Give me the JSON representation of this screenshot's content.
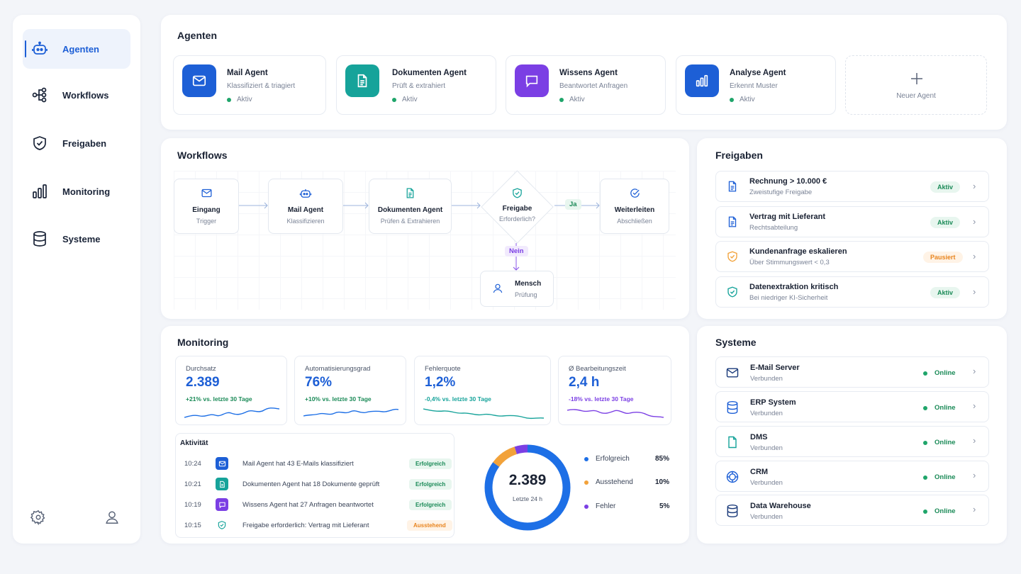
{
  "colors": {
    "accent": "#1d5fd6",
    "success": "#1fa56a",
    "warning": "#f2a23a",
    "error": "#7b3fe4"
  },
  "sidebar": {
    "items": [
      {
        "label": "Agenten",
        "icon": "robot-icon",
        "active": true
      },
      {
        "label": "Workflows",
        "icon": "workflow-icon"
      },
      {
        "label": "Freigaben",
        "icon": "shield-check-icon"
      },
      {
        "label": "Monitoring",
        "icon": "bar-chart-icon"
      },
      {
        "label": "Systeme",
        "icon": "database-icon"
      }
    ],
    "footer": [
      "settings-icon",
      "user-icon"
    ]
  },
  "agents": {
    "title": "Agenten",
    "items": [
      {
        "name": "Mail Agent",
        "desc": "Klassifiziert & triagiert",
        "status": "Aktiv",
        "icon": "mail-icon",
        "color": "#1d5fd6"
      },
      {
        "name": "Dokumenten Agent",
        "desc": "Prüft & extrahiert",
        "status": "Aktiv",
        "icon": "document-icon",
        "color": "#16a39a"
      },
      {
        "name": "Wissens Agent",
        "desc": "Beantwortet Anfragen",
        "status": "Aktiv",
        "icon": "chat-icon",
        "color": "#7b3fe4"
      },
      {
        "name": "Analyse Agent",
        "desc": "Erkennt Muster",
        "status": "Aktiv",
        "icon": "bar-chart-icon",
        "color": "#1d5fd6"
      }
    ],
    "new_label": "Neuer Agent"
  },
  "workflows": {
    "title": "Workflows",
    "nodes": [
      {
        "title": "Eingang",
        "sub": "Trigger"
      },
      {
        "title": "Mail Agent",
        "sub": "Klassifizieren"
      },
      {
        "title": "Dokumenten Agent",
        "sub": "Prüfen & Extrahieren"
      },
      {
        "title": "Freigabe",
        "sub": "Erforderlich?"
      },
      {
        "title": "Weiterleiten",
        "sub": "Abschließen"
      },
      {
        "title": "Mensch",
        "sub": "Prüfung"
      }
    ],
    "yes": "Ja",
    "no": "Nein"
  },
  "approvals": {
    "title": "Freigaben",
    "items": [
      {
        "title": "Rechnung > 10.000 €",
        "sub": "Zweistufige Freigabe",
        "status": "Aktiv"
      },
      {
        "title": "Vertrag mit Lieferant",
        "sub": "Rechtsabteilung",
        "status": "Aktiv"
      },
      {
        "title": "Kundenanfrage eskalieren",
        "sub": "Über Stimmungswert < 0,3",
        "status": "Pausiert"
      },
      {
        "title": "Datenextraktion kritisch",
        "sub": "Bei niedriger KI-Sicherheit",
        "status": "Aktiv"
      }
    ]
  },
  "monitoring": {
    "title": "Monitoring",
    "kpis": [
      {
        "label": "Durchsatz",
        "value": "2.389",
        "delta": "+21% vs. letzte 30 Tage"
      },
      {
        "label": "Automatisierungsgrad",
        "value": "76%",
        "delta": "+10% vs. letzte 30 Tage"
      },
      {
        "label": "Fehlerquote",
        "value": "1,2%",
        "delta": "-0,4% vs. letzte 30 Tage"
      },
      {
        "label": "Ø Bearbeitungszeit",
        "value": "2,4 h",
        "delta": "-18% vs. letzte 30 Tage"
      }
    ],
    "activity": {
      "title": "Aktivität",
      "rows": [
        {
          "time": "10:24",
          "text": "Mail Agent hat 43 E-Mails klassifiziert",
          "status": "Erfolgreich"
        },
        {
          "time": "10:21",
          "text": "Dokumenten Agent hat 18 Dokumente geprüft",
          "status": "Erfolgreich"
        },
        {
          "time": "10:19",
          "text": "Wissens Agent hat 27 Anfragen beantwortet",
          "status": "Erfolgreich"
        },
        {
          "time": "10:15",
          "text": "Freigabe erforderlich: Vertrag mit Lieferant",
          "status": "Ausstehend"
        }
      ]
    },
    "donut": {
      "value": "2.389",
      "caption": "Letzte 24 h",
      "legend": [
        {
          "label": "Erfolgreich",
          "pct": "85%",
          "share": 85,
          "color": "#1d6fe6"
        },
        {
          "label": "Ausstehend",
          "pct": "10%",
          "share": 10,
          "color": "#f2a23a"
        },
        {
          "label": "Fehler",
          "pct": "5%",
          "share": 5,
          "color": "#7b3fe4"
        }
      ]
    }
  },
  "systems": {
    "title": "Systeme",
    "items": [
      {
        "name": "E-Mail Server",
        "sub": "Verbunden",
        "status": "Online"
      },
      {
        "name": "ERP System",
        "sub": "Verbunden",
        "status": "Online"
      },
      {
        "name": "DMS",
        "sub": "Verbunden",
        "status": "Online"
      },
      {
        "name": "CRM",
        "sub": "Verbunden",
        "status": "Online"
      },
      {
        "name": "Data Warehouse",
        "sub": "Verbunden",
        "status": "Online"
      }
    ]
  }
}
